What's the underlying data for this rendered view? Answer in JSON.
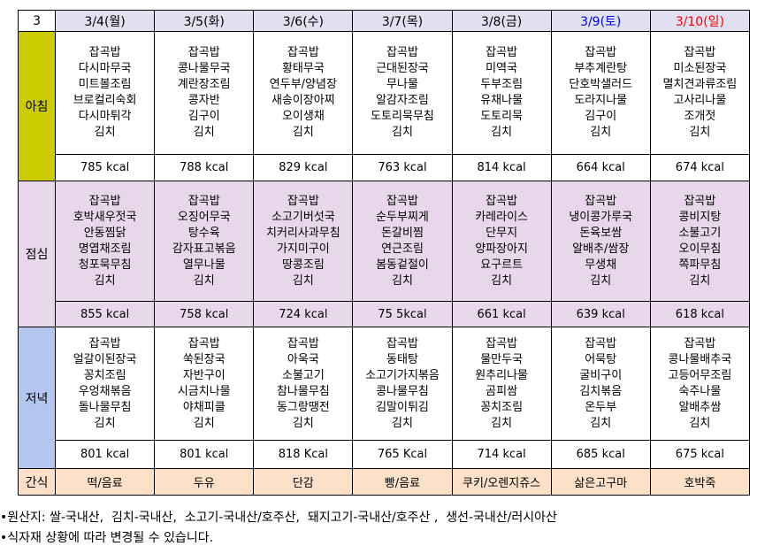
{
  "month": "3",
  "days": [
    {
      "label": "3/4(월)",
      "type": "weekday"
    },
    {
      "label": "3/5(화)",
      "type": "weekday"
    },
    {
      "label": "3/6(수)",
      "type": "weekday"
    },
    {
      "label": "3/7(목)",
      "type": "weekday"
    },
    {
      "label": "3/8(금)",
      "type": "weekday"
    },
    {
      "label": "3/9(토)",
      "type": "sat"
    },
    {
      "label": "3/10(일)",
      "type": "sun"
    }
  ],
  "colors": {
    "breakfast": "#cccc00",
    "lunch": "#e8d7ea",
    "dinner": "#b4c6f0",
    "snack": "#fce0c8",
    "header": "#e0e0f0",
    "saturday": "#0000ee",
    "sunday": "#ff0000"
  },
  "meals": [
    {
      "label": "아침",
      "key": "b",
      "menus": [
        [
          "잡곡밥",
          "다시마무국",
          "미트볼조림",
          "브로컬리숙회",
          "다시마튀각",
          "김치"
        ],
        [
          "잡곡밥",
          "콩나물무국",
          "계란장조림",
          "콩자반",
          "김구이",
          "김치"
        ],
        [
          "잡곡밥",
          "황태무국",
          "연두부/양념장",
          "새송이장아찌",
          "오이생채",
          "김치"
        ],
        [
          "잡곡밥",
          "근대된장국",
          "무나물",
          "알감자조림",
          "도토리묵무침",
          "김치"
        ],
        [
          "잡곡밥",
          "미역국",
          "두부조림",
          "유채나물",
          "도토리묵",
          "김치"
        ],
        [
          "잡곡밥",
          "부추계란탕",
          "단호박샐러드",
          "도라지나물",
          "김구이",
          "김치"
        ],
        [
          "잡곡밥",
          "미소된장국",
          "멸치견과류조림",
          "고사리나물",
          "조개젓",
          "김치"
        ]
      ],
      "kcal": [
        "785 kcal",
        "788 kcal",
        "829 kcal",
        "763 kcal",
        "814 kcal",
        "664 kcal",
        "674 kcal"
      ]
    },
    {
      "label": "점심",
      "key": "l",
      "menus": [
        [
          "잡곡밥",
          "호박새우젓국",
          "안동찜닭",
          "명엽채조림",
          "청포묵무침",
          "김치"
        ],
        [
          "잡곡밥",
          "오징어무국",
          "탕수육",
          "감자표고볶음",
          "열무나물",
          "김치"
        ],
        [
          "잡곡밥",
          "소고기버섯국",
          "치커리사과무침",
          "가지미구이",
          "땅콩조림",
          "김치"
        ],
        [
          "잡곡밥",
          "순두부찌게",
          "돈갈비찜",
          "연근조림",
          "봄동겉절이",
          "김치"
        ],
        [
          "잡곡밥",
          "카레라이스",
          "단무지",
          "양파장아지",
          "요구르트",
          "김치"
        ],
        [
          "잡곡밥",
          "냉이콩가루국",
          "돈육보쌈",
          "알배추/쌈장",
          "무생채",
          "김치"
        ],
        [
          "잡곡밥",
          "콩비지탕",
          "소불고기",
          "오이무침",
          "쪽파무침",
          "김치"
        ]
      ],
      "kcal": [
        "855 kcal",
        "758 kcal",
        "724 kcal",
        "75 5kcal",
        "661 kcal",
        "639 kcal",
        "618 kcal"
      ]
    },
    {
      "label": "저녁",
      "key": "d",
      "menus": [
        [
          "잡곡밥",
          "얼갈이된장국",
          "꽁치조림",
          "우엉채볶음",
          "돌나물무침",
          "김치"
        ],
        [
          "잡곡밥",
          "쑥된장국",
          "자반구이",
          "시금치나물",
          "야채피클",
          "김치"
        ],
        [
          "잡곡밥",
          "아욱국",
          "소불고기",
          "참나물무침",
          "동그랑땡전",
          "김치"
        ],
        [
          "잡곡밥",
          "동태탕",
          "소고기가지볶음",
          "콩나물무침",
          "김말이튀김",
          "김치"
        ],
        [
          "잡곡밥",
          "물만두국",
          "원추리나물",
          "곰피쌈",
          "꽁치조림",
          "김치"
        ],
        [
          "잡곡밥",
          "어묵탕",
          "굴비구이",
          "김치볶음",
          "온두부",
          "김치"
        ],
        [
          "잡곡밥",
          "콩나물배추국",
          "고등어무조림",
          "숙주나물",
          "알배추쌈",
          "김치"
        ]
      ],
      "kcal": [
        "801 kcal",
        "801 kcal",
        "818 Kcal",
        "765 Kcal",
        "714 kcal",
        "685 kcal",
        "675 kcal"
      ]
    }
  ],
  "snack": {
    "label": "간식",
    "items": [
      "떡/음료",
      "두유",
      "단감",
      "빵/음료",
      "쿠키/오렌지쥬스",
      "삶은고구마",
      "호박죽"
    ]
  },
  "notes": [
    "•원산지: 쌀-국내산,  김치-국내산,  소고기-국내산/호주산,  돼지고기-국내산/호주산 ,  생선-국내산/러시아산",
    "•식자재 상황에 따라 변경될 수 있습니다."
  ]
}
